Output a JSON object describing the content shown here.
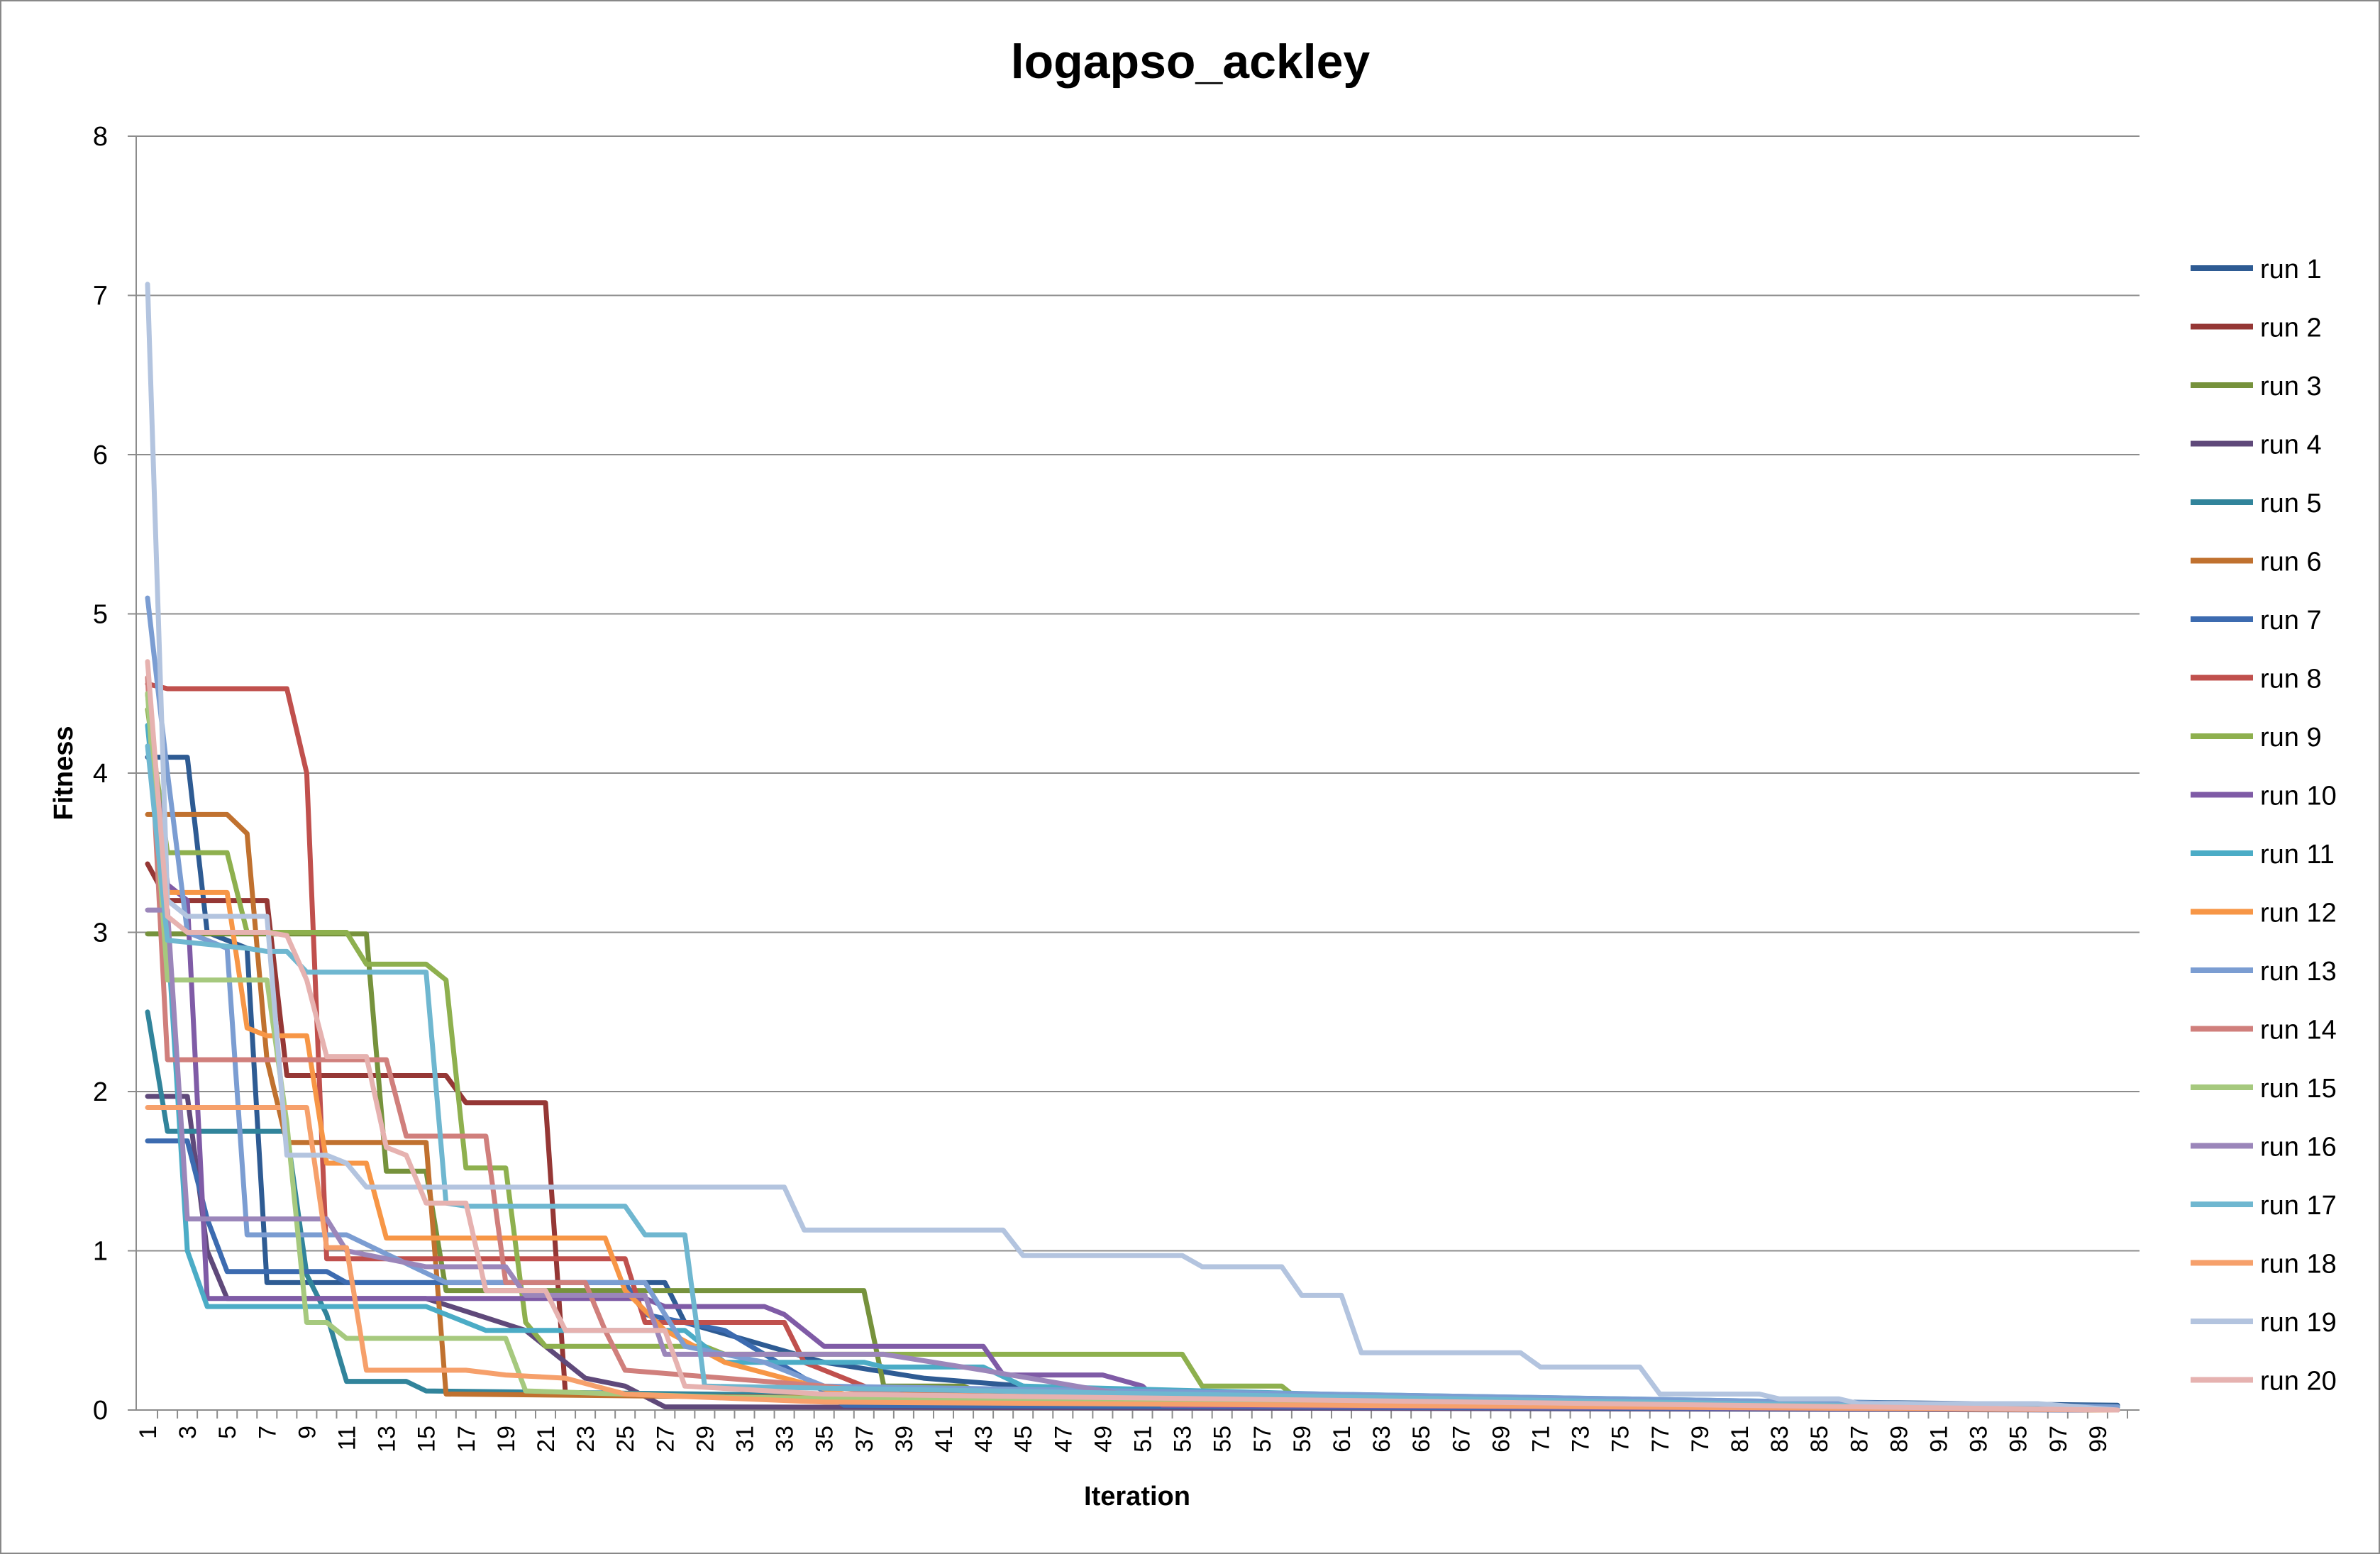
{
  "chart_data": {
    "type": "line",
    "title": "logapso_ackley",
    "xlabel": "Iteration",
    "ylabel": "Fitness",
    "ylim": [
      0,
      8
    ],
    "y_ticks": [
      "0",
      "1",
      "2",
      "3",
      "4",
      "5",
      "6",
      "7",
      "8"
    ],
    "x_ticks": [
      "1",
      "3",
      "5",
      "7",
      "9",
      "11",
      "13",
      "15",
      "17",
      "19",
      "21",
      "23",
      "25",
      "27",
      "29",
      "31",
      "33",
      "35",
      "37",
      "39",
      "41",
      "43",
      "45",
      "47",
      "49",
      "51",
      "53",
      "55",
      "57",
      "59",
      "61",
      "63",
      "65",
      "67",
      "69",
      "71",
      "73",
      "75",
      "77",
      "79",
      "81",
      "83",
      "85",
      "87",
      "89",
      "91",
      "93",
      "95",
      "97",
      "99"
    ],
    "xlim": [
      1,
      100
    ],
    "grid": true,
    "legend_position": "right",
    "series": [
      {
        "name": "run 1",
        "color": "#2E5B93",
        "points": [
          [
            1,
            4.1
          ],
          [
            3,
            4.1
          ],
          [
            4,
            3.0
          ],
          [
            6,
            2.9
          ],
          [
            7,
            0.8
          ],
          [
            27,
            0.8
          ],
          [
            28,
            0.55
          ],
          [
            35,
            0.3
          ],
          [
            40,
            0.2
          ],
          [
            50,
            0.1
          ],
          [
            100,
            0.03
          ]
        ]
      },
      {
        "name": "run 2",
        "color": "#953735",
        "points": [
          [
            1,
            3.43
          ],
          [
            2,
            3.2
          ],
          [
            7,
            3.2
          ],
          [
            8,
            2.1
          ],
          [
            16,
            2.1
          ],
          [
            17,
            1.93
          ],
          [
            21,
            1.93
          ],
          [
            22,
            0.1
          ],
          [
            100,
            0.0
          ]
        ]
      },
      {
        "name": "run 3",
        "color": "#76923C",
        "points": [
          [
            1,
            2.99
          ],
          [
            12,
            2.99
          ],
          [
            13,
            1.5
          ],
          [
            15,
            1.5
          ],
          [
            16,
            0.75
          ],
          [
            37,
            0.75
          ],
          [
            38,
            0.15
          ],
          [
            42,
            0.15
          ],
          [
            43,
            0.1
          ],
          [
            100,
            0.02
          ]
        ]
      },
      {
        "name": "run 4",
        "color": "#5F497A",
        "points": [
          [
            1,
            1.97
          ],
          [
            3,
            1.97
          ],
          [
            4,
            1.0
          ],
          [
            5,
            0.7
          ],
          [
            15,
            0.7
          ],
          [
            20,
            0.5
          ],
          [
            23,
            0.2
          ],
          [
            25,
            0.15
          ],
          [
            27,
            0.02
          ],
          [
            100,
            0.0
          ]
        ]
      },
      {
        "name": "run 5",
        "color": "#31849B",
        "points": [
          [
            1,
            2.5
          ],
          [
            2,
            1.75
          ],
          [
            8,
            1.75
          ],
          [
            9,
            0.85
          ],
          [
            10,
            0.6
          ],
          [
            11,
            0.18
          ],
          [
            14,
            0.18
          ],
          [
            15,
            0.12
          ],
          [
            100,
            0.0
          ]
        ]
      },
      {
        "name": "run 6",
        "color": "#C0712F",
        "points": [
          [
            1,
            3.74
          ],
          [
            5,
            3.74
          ],
          [
            6,
            3.62
          ],
          [
            7,
            2.2
          ],
          [
            8,
            1.68
          ],
          [
            15,
            1.68
          ],
          [
            16,
            0.1
          ],
          [
            100,
            0.0
          ]
        ]
      },
      {
        "name": "run 7",
        "color": "#3C6BB0",
        "points": [
          [
            1,
            1.69
          ],
          [
            3,
            1.69
          ],
          [
            4,
            1.2
          ],
          [
            5,
            0.87
          ],
          [
            10,
            0.87
          ],
          [
            11,
            0.8
          ],
          [
            25,
            0.8
          ],
          [
            26,
            0.6
          ],
          [
            30,
            0.5
          ],
          [
            34,
            0.2
          ],
          [
            36,
            0.03
          ],
          [
            100,
            0.0
          ]
        ]
      },
      {
        "name": "run 8",
        "color": "#C0504D",
        "points": [
          [
            1,
            4.56
          ],
          [
            2,
            4.53
          ],
          [
            8,
            4.53
          ],
          [
            9,
            4.0
          ],
          [
            10,
            0.95
          ],
          [
            25,
            0.95
          ],
          [
            26,
            0.55
          ],
          [
            33,
            0.55
          ],
          [
            34,
            0.3
          ],
          [
            38,
            0.1
          ],
          [
            100,
            0.0
          ]
        ]
      },
      {
        "name": "run 9",
        "color": "#8EB04E",
        "points": [
          [
            1,
            4.4
          ],
          [
            2,
            3.5
          ],
          [
            5,
            3.5
          ],
          [
            6,
            3.0
          ],
          [
            11,
            3.0
          ],
          [
            12,
            2.8
          ],
          [
            15,
            2.8
          ],
          [
            16,
            2.7
          ],
          [
            17,
            1.52
          ],
          [
            19,
            1.52
          ],
          [
            20,
            0.55
          ],
          [
            21,
            0.4
          ],
          [
            29,
            0.4
          ],
          [
            30,
            0.35
          ],
          [
            53,
            0.35
          ],
          [
            54,
            0.15
          ],
          [
            58,
            0.15
          ],
          [
            59,
            0.05
          ],
          [
            100,
            0.0
          ]
        ]
      },
      {
        "name": "run 10",
        "color": "#7F5BA6",
        "points": [
          [
            1,
            4.5
          ],
          [
            2,
            3.3
          ],
          [
            3,
            3.2
          ],
          [
            4,
            0.7
          ],
          [
            26,
            0.7
          ],
          [
            27,
            0.65
          ],
          [
            32,
            0.65
          ],
          [
            33,
            0.6
          ],
          [
            35,
            0.4
          ],
          [
            43,
            0.4
          ],
          [
            44,
            0.22
          ],
          [
            49,
            0.22
          ],
          [
            51,
            0.15
          ],
          [
            52,
            0.03
          ],
          [
            100,
            0.0
          ]
        ]
      },
      {
        "name": "run 11",
        "color": "#4BACC6",
        "points": [
          [
            1,
            4.3
          ],
          [
            2,
            3.0
          ],
          [
            3,
            1.0
          ],
          [
            4,
            0.65
          ],
          [
            15,
            0.65
          ],
          [
            16,
            0.6
          ],
          [
            18,
            0.5
          ],
          [
            28,
            0.5
          ],
          [
            30,
            0.3
          ],
          [
            37,
            0.3
          ],
          [
            38,
            0.27
          ],
          [
            43,
            0.27
          ],
          [
            45,
            0.15
          ],
          [
            60,
            0.1
          ],
          [
            100,
            0.02
          ]
        ]
      },
      {
        "name": "run 12",
        "color": "#F79646",
        "points": [
          [
            1,
            4.5
          ],
          [
            2,
            3.25
          ],
          [
            4,
            3.25
          ],
          [
            5,
            3.25
          ],
          [
            6,
            2.4
          ],
          [
            7,
            2.35
          ],
          [
            9,
            2.35
          ],
          [
            10,
            1.55
          ],
          [
            12,
            1.55
          ],
          [
            13,
            1.08
          ],
          [
            24,
            1.08
          ],
          [
            25,
            0.75
          ],
          [
            27,
            0.5
          ],
          [
            30,
            0.3
          ],
          [
            36,
            0.1
          ],
          [
            100,
            0.0
          ]
        ]
      },
      {
        "name": "run 13",
        "color": "#7B9DD2",
        "points": [
          [
            1,
            5.1
          ],
          [
            2,
            4.0
          ],
          [
            3,
            3.0
          ],
          [
            5,
            2.9
          ],
          [
            6,
            1.1
          ],
          [
            10,
            1.1
          ],
          [
            11,
            1.1
          ],
          [
            16,
            0.8
          ],
          [
            26,
            0.8
          ],
          [
            28,
            0.4
          ],
          [
            32,
            0.3
          ],
          [
            35,
            0.15
          ],
          [
            100,
            0.02
          ]
        ]
      },
      {
        "name": "run 14",
        "color": "#D07F7C",
        "points": [
          [
            1,
            4.6
          ],
          [
            2,
            2.2
          ],
          [
            6,
            2.2
          ],
          [
            7,
            2.2
          ],
          [
            13,
            2.2
          ],
          [
            14,
            1.72
          ],
          [
            18,
            1.72
          ],
          [
            19,
            0.8
          ],
          [
            23,
            0.8
          ],
          [
            24,
            0.5
          ],
          [
            25,
            0.25
          ],
          [
            30,
            0.2
          ],
          [
            35,
            0.15
          ],
          [
            40,
            0.08
          ],
          [
            100,
            0.0
          ]
        ]
      },
      {
        "name": "run 15",
        "color": "#A6C97E",
        "points": [
          [
            1,
            4.5
          ],
          [
            2,
            2.7
          ],
          [
            7,
            2.7
          ],
          [
            8,
            1.8
          ],
          [
            9,
            0.55
          ],
          [
            10,
            0.55
          ],
          [
            11,
            0.45
          ],
          [
            19,
            0.45
          ],
          [
            20,
            0.12
          ],
          [
            30,
            0.08
          ],
          [
            100,
            0.0
          ]
        ]
      },
      {
        "name": "run 16",
        "color": "#9B86BA",
        "points": [
          [
            1,
            3.14
          ],
          [
            2,
            3.14
          ],
          [
            3,
            1.2
          ],
          [
            10,
            1.2
          ],
          [
            11,
            1.0
          ],
          [
            15,
            0.9
          ],
          [
            19,
            0.9
          ],
          [
            20,
            0.72
          ],
          [
            26,
            0.72
          ],
          [
            27,
            0.35
          ],
          [
            38,
            0.35
          ],
          [
            43,
            0.25
          ],
          [
            50,
            0.1
          ],
          [
            100,
            0.0
          ]
        ]
      },
      {
        "name": "run 17",
        "color": "#6FB7D0",
        "points": [
          [
            1,
            4.17
          ],
          [
            2,
            2.95
          ],
          [
            6,
            2.9
          ],
          [
            7,
            2.88
          ],
          [
            8,
            2.88
          ],
          [
            9,
            2.75
          ],
          [
            15,
            2.75
          ],
          [
            16,
            1.3
          ],
          [
            17,
            1.28
          ],
          [
            25,
            1.28
          ],
          [
            26,
            1.1
          ],
          [
            28,
            1.1
          ],
          [
            29,
            0.15
          ],
          [
            100,
            0.0
          ]
        ]
      },
      {
        "name": "run 18",
        "color": "#F6A06B",
        "points": [
          [
            1,
            1.9
          ],
          [
            9,
            1.9
          ],
          [
            10,
            1.02
          ],
          [
            11,
            1.02
          ],
          [
            12,
            0.25
          ],
          [
            17,
            0.25
          ],
          [
            19,
            0.22
          ],
          [
            22,
            0.2
          ],
          [
            25,
            0.1
          ],
          [
            35,
            0.05
          ],
          [
            100,
            0.0
          ]
        ]
      },
      {
        "name": "run 19",
        "color": "#B3C4DF",
        "points": [
          [
            1,
            7.07
          ],
          [
            2,
            3.2
          ],
          [
            3,
            3.1
          ],
          [
            7,
            3.1
          ],
          [
            8,
            1.6
          ],
          [
            10,
            1.6
          ],
          [
            11,
            1.55
          ],
          [
            12,
            1.4
          ],
          [
            33,
            1.4
          ],
          [
            34,
            1.13
          ],
          [
            44,
            1.13
          ],
          [
            45,
            0.97
          ],
          [
            53,
            0.97
          ],
          [
            54,
            0.9
          ],
          [
            58,
            0.9
          ],
          [
            59,
            0.72
          ],
          [
            61,
            0.72
          ],
          [
            62,
            0.36
          ],
          [
            70,
            0.36
          ],
          [
            71,
            0.27
          ],
          [
            76,
            0.27
          ],
          [
            77,
            0.1
          ],
          [
            82,
            0.1
          ],
          [
            83,
            0.07
          ],
          [
            86,
            0.07
          ],
          [
            87,
            0.04
          ],
          [
            96,
            0.04
          ],
          [
            100,
            0.0
          ]
        ]
      },
      {
        "name": "run 20",
        "color": "#E6B2B0",
        "points": [
          [
            1,
            4.7
          ],
          [
            2,
            3.1
          ],
          [
            3,
            3.0
          ],
          [
            7,
            3.0
          ],
          [
            8,
            2.98
          ],
          [
            9,
            2.7
          ],
          [
            10,
            2.22
          ],
          [
            12,
            2.22
          ],
          [
            13,
            1.65
          ],
          [
            14,
            1.6
          ],
          [
            15,
            1.3
          ],
          [
            17,
            1.3
          ],
          [
            18,
            0.75
          ],
          [
            21,
            0.75
          ],
          [
            22,
            0.5
          ],
          [
            27,
            0.5
          ],
          [
            28,
            0.15
          ],
          [
            35,
            0.1
          ],
          [
            100,
            0.0
          ]
        ]
      }
    ]
  }
}
